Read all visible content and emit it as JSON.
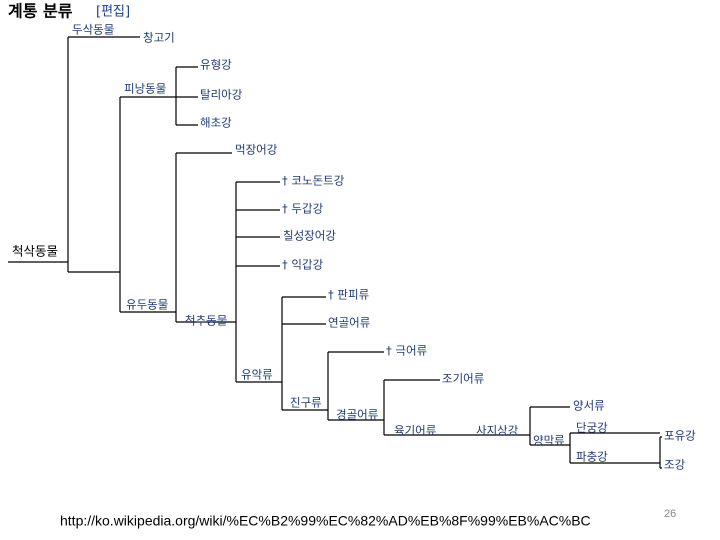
{
  "header": {
    "title": "계통 분류",
    "edit_link": "[편집]"
  },
  "nodes": [
    {
      "label": "척삭동물"
    },
    {
      "label": "두삭동물"
    },
    {
      "label": "창고기"
    },
    {
      "label": "피낭동물"
    },
    {
      "label": "유형강"
    },
    {
      "label": "탈리아강"
    },
    {
      "label": "해초강"
    },
    {
      "label": "유두동물"
    },
    {
      "label": "먹장어강"
    },
    {
      "label": "척추동물"
    },
    {
      "label": "† 코노돈트강"
    },
    {
      "label": "† 두갑강"
    },
    {
      "label": "칠성장어강"
    },
    {
      "label": "† 익갑강"
    },
    {
      "label": "유악류"
    },
    {
      "label": "† 판피류"
    },
    {
      "label": "연골어류"
    },
    {
      "label": "진구류"
    },
    {
      "label": "† 극어류"
    },
    {
      "label": "경골어류"
    },
    {
      "label": "조기어류"
    },
    {
      "label": "육기어류"
    },
    {
      "label": "사지상강"
    },
    {
      "label": "양서류"
    },
    {
      "label": "양막류"
    },
    {
      "label": "단궁강"
    },
    {
      "label": "파충강"
    },
    {
      "label": "포유강"
    },
    {
      "label": "조강"
    }
  ],
  "footer": {
    "url": "http://ko.wikipedia.org/wiki/%EC%B2%99%EC%82%AD%EB%8F%99%EB%AC%BC",
    "page_number": 26
  }
}
